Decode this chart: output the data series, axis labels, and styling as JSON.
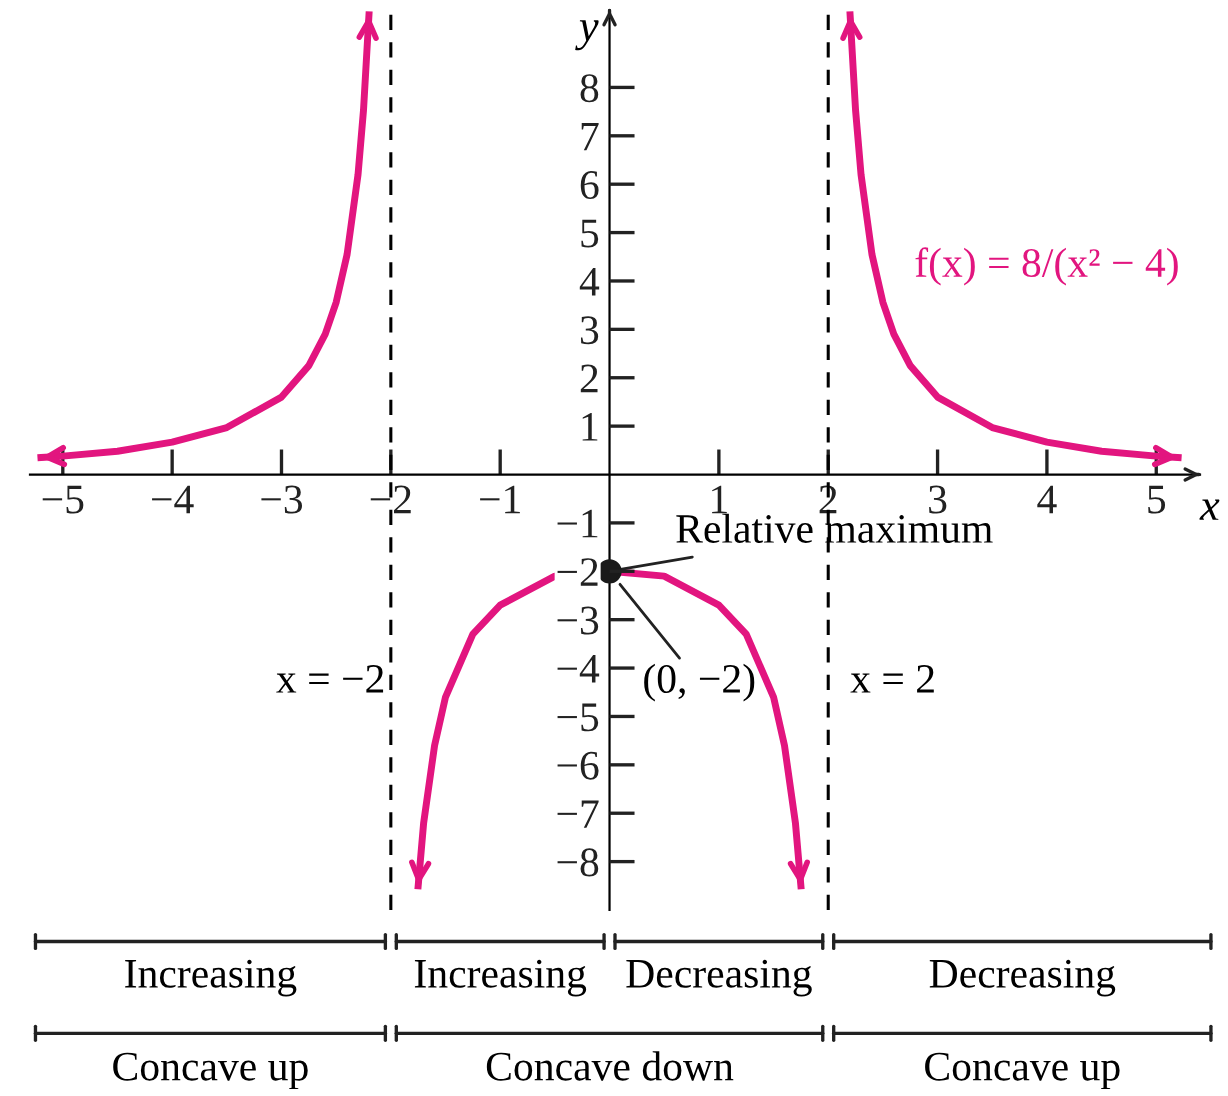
{
  "chart_data": {
    "type": "line",
    "xlabel": "x",
    "ylabel": "y",
    "xlim": [
      -5.3,
      5.4
    ],
    "ylim": [
      -9.0,
      9.6
    ],
    "xticks": [
      -5,
      -4,
      -3,
      -2,
      -1,
      1,
      2,
      3,
      4,
      5
    ],
    "yticks": [
      -8,
      -7,
      -6,
      -5,
      -4,
      -3,
      -2,
      -1,
      1,
      2,
      3,
      4,
      5,
      6,
      7,
      8
    ],
    "line_style": "solid",
    "marker": "none",
    "series": [
      {
        "color": "#e2157f",
        "x": [
          -5.2,
          -5,
          -4.5,
          -4,
          -3.5,
          -3,
          -2.75,
          -2.6,
          -2.5,
          -2.4,
          -2.3,
          -2.25,
          -2.2
        ],
        "values": [
          0.35,
          0.38,
          0.48,
          0.67,
          0.97,
          1.6,
          2.25,
          2.9,
          3.56,
          4.55,
          6.2,
          7.53,
          9.5
        ]
      },
      {
        "color": "#e2157f",
        "x": [
          -1.75,
          -1.7,
          -1.6,
          -1.5,
          -1.25,
          -1,
          -0.5,
          0,
          0.5,
          1,
          1.25,
          1.5,
          1.6,
          1.7,
          1.75
        ],
        "values": [
          -8.5,
          -7.2,
          -5.6,
          -4.6,
          -3.3,
          -2.7,
          -2.1,
          -2,
          -2.1,
          -2.7,
          -3.3,
          -4.6,
          -5.6,
          -7.2,
          -8.5
        ]
      },
      {
        "color": "#e2157f",
        "x": [
          2.2,
          2.25,
          2.3,
          2.4,
          2.5,
          2.6,
          2.75,
          3,
          3.5,
          4,
          4.5,
          5,
          5.2
        ],
        "values": [
          9.5,
          7.53,
          6.2,
          4.55,
          3.56,
          2.9,
          2.25,
          1.6,
          0.97,
          0.67,
          0.48,
          0.38,
          0.35
        ]
      },
      {
        "type": "scatter",
        "marker": "circle",
        "color": "#1a1a1a",
        "x": [
          0
        ],
        "values": [
          -2
        ]
      }
    ],
    "ref_lines": [
      {
        "axis": "x",
        "value": -2,
        "label": "x = −2",
        "color": "#000000",
        "line_style": "dashed"
      },
      {
        "axis": "x",
        "value": 2,
        "label": "x = 2",
        "color": "#000000",
        "line_style": "dashed"
      }
    ],
    "annotations": [
      "f(x) = 8/(x² − 4)",
      {
        "text": "Relative maximum",
        "x": 0,
        "y": -2
      },
      {
        "text": "(0, −2)",
        "x": 0,
        "y": -2
      },
      "Increasing",
      "Increasing",
      "Decreasing",
      "Decreasing",
      "Concave up",
      "Concave down",
      "Concave up"
    ]
  }
}
